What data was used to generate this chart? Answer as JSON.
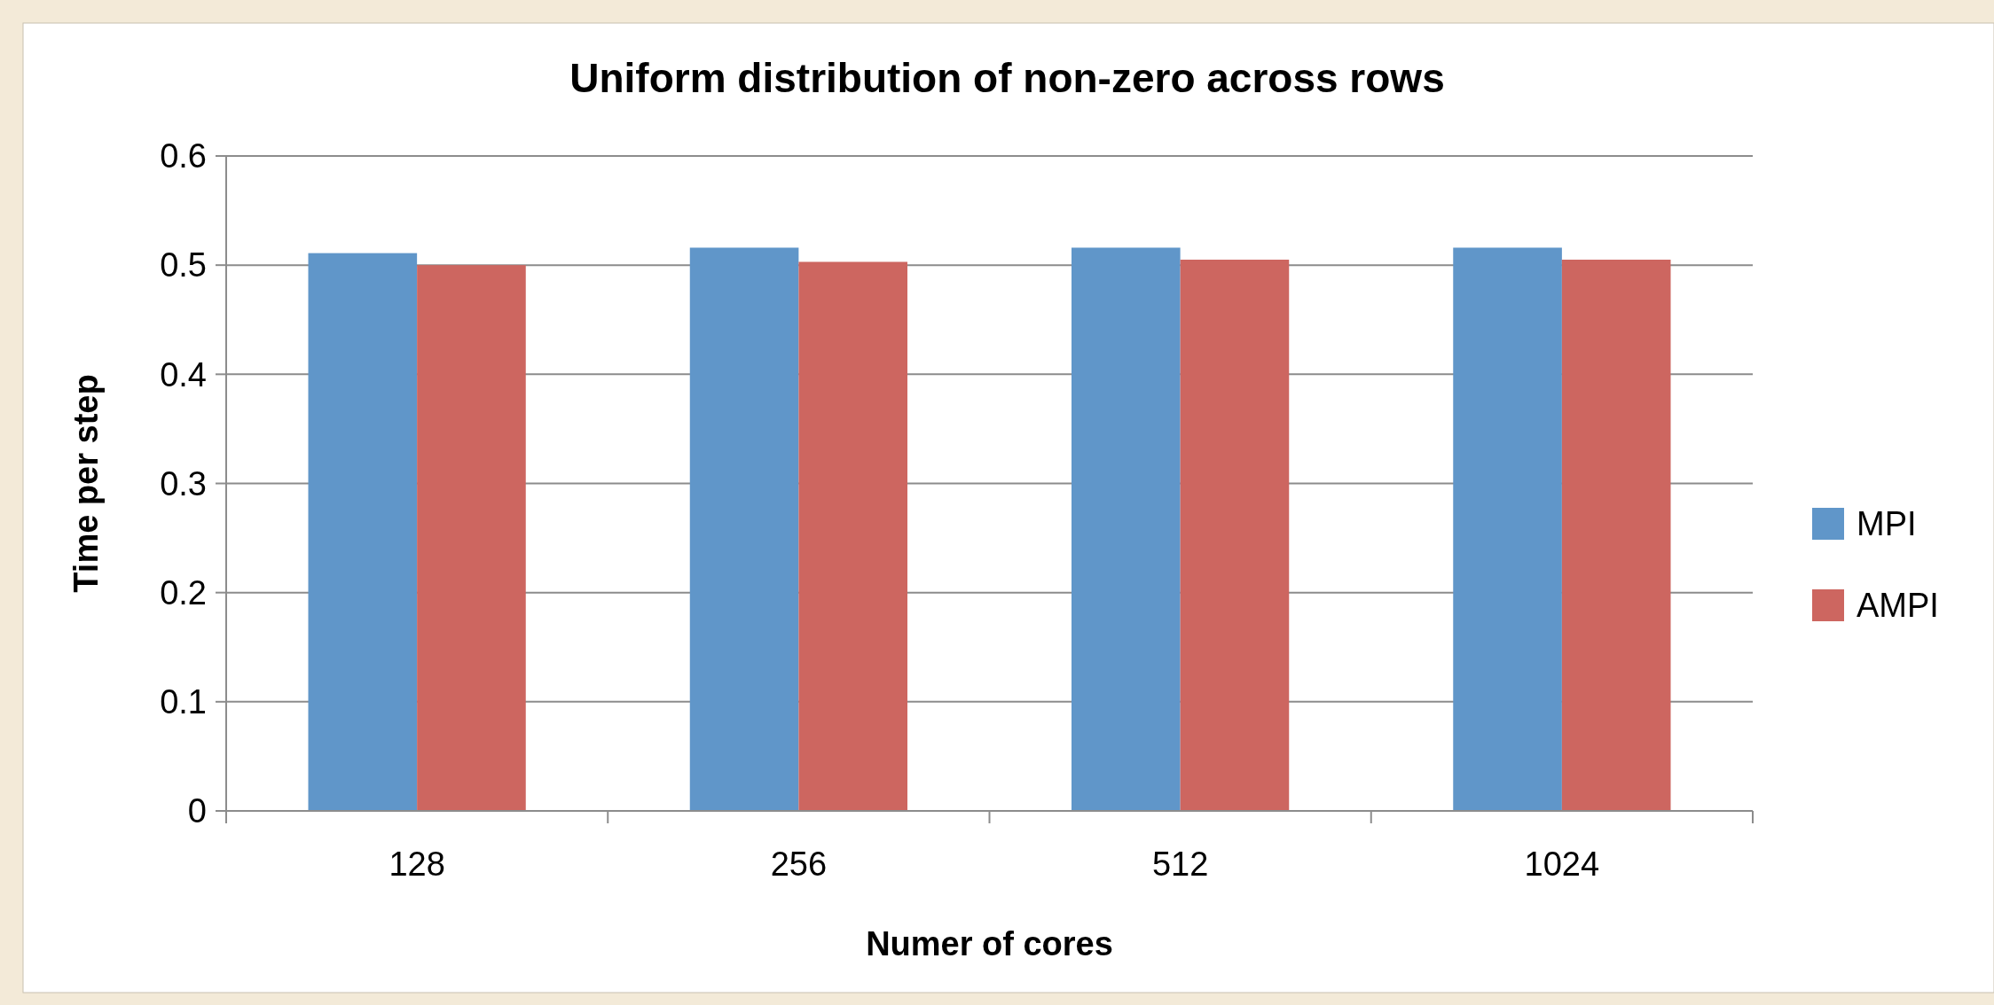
{
  "chart_data": {
    "type": "bar",
    "title": "Uniform distribution of non-zero across rows",
    "xlabel": "Numer of cores",
    "ylabel": "Time per step",
    "categories": [
      "128",
      "256",
      "512",
      "1024"
    ],
    "series": [
      {
        "name": "MPI",
        "color": "#6096c9",
        "values": [
          0.511,
          0.516,
          0.516,
          0.516
        ]
      },
      {
        "name": "AMPI",
        "color": "#cd6660",
        "values": [
          0.5,
          0.503,
          0.505,
          0.505
        ]
      }
    ],
    "ylim": [
      0,
      0.6
    ],
    "yticks": [
      {
        "value": 0,
        "label": "0"
      },
      0.1,
      0.2,
      0.3,
      0.4,
      0.5,
      0.6
    ],
    "grid": "y",
    "legend": "right"
  }
}
